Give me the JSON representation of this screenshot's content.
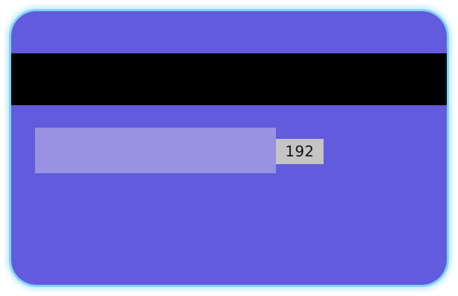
{
  "card": {
    "background_color": "#625bdd",
    "glow_color": "#7fd0f7",
    "stripe_color": "#000000",
    "signature_panel_color": "#9892e0",
    "cvv_box_color": "#c4c4c4",
    "cvv": "192"
  }
}
